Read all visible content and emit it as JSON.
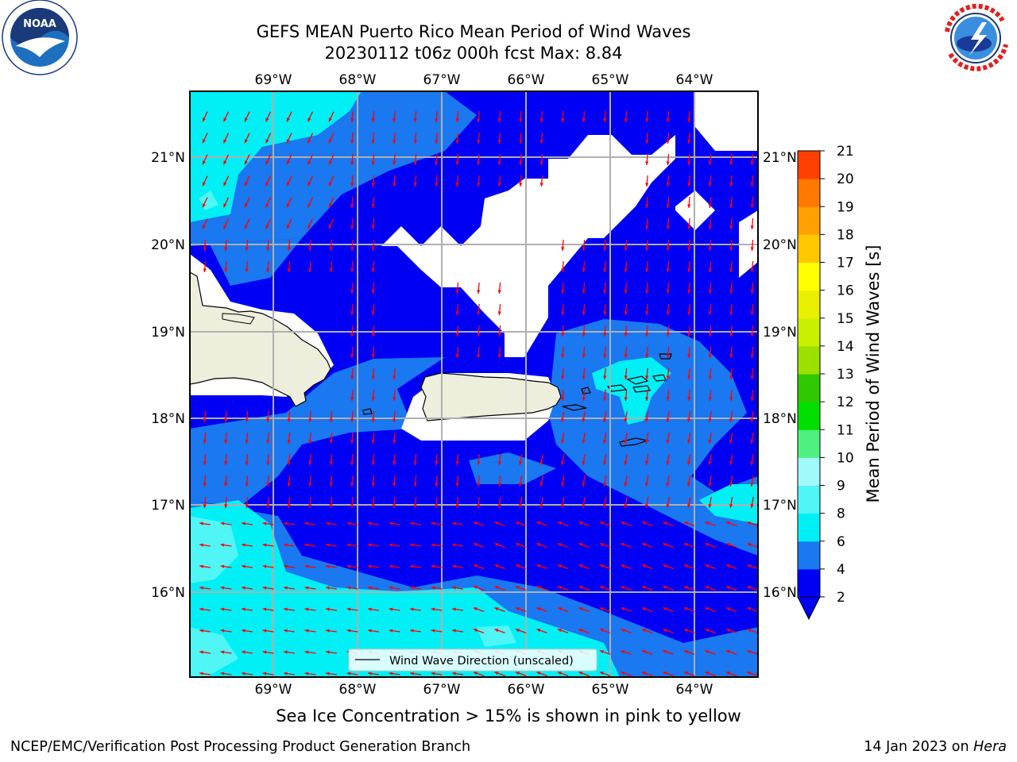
{
  "title_line1": "GEFS MEAN Puerto Rico Mean Period of Wind Waves",
  "title_line2": "20230112 t06z 000h fcst   Max: 8.84",
  "logos": {
    "left": "NOAA",
    "right": "NATIONAL WEATHER SERVICE"
  },
  "map": {
    "lon_labels": [
      "69°W",
      "68°W",
      "67°W",
      "66°W",
      "65°W",
      "64°W"
    ],
    "lat_labels": [
      "21°N",
      "20°N",
      "19°N",
      "18°N",
      "17°N",
      "16°N"
    ],
    "legend_label": "Wind Wave Direction (unscaled)",
    "colors": {
      "land": "#eeeedc",
      "class_2_4": "#0000f5",
      "class_4_6": "#1a78f0",
      "class_6_8": "#00f0f5",
      "class_8_9": "#50f5f5",
      "arrow": "#ff0000"
    }
  },
  "colorbar": {
    "label": "Mean Period of Wind Waves [s]",
    "ticks": [
      "2",
      "4",
      "6",
      "8",
      "9",
      "10",
      "11",
      "12",
      "13",
      "14",
      "15",
      "16",
      "17",
      "18",
      "19",
      "20",
      "21"
    ],
    "colors": [
      "#0000f5",
      "#1a78f0",
      "#00f0f5",
      "#50f5f5",
      "#a0fafa",
      "#50f080",
      "#00e000",
      "#30c800",
      "#9ce000",
      "#c8f000",
      "#e8f000",
      "#ffff00",
      "#ffc800",
      "#ffa000",
      "#ff7800",
      "#ff4000",
      "#ff0000"
    ],
    "extend_color": "#0000f5"
  },
  "caption": "Sea Ice Concentration > 15% is shown in pink to yellow",
  "footer_left": "NCEP/EMC/Verification Post Processing Product Generation Branch",
  "footer_right_prefix": "14 Jan 2023 on ",
  "footer_right_host": "Hera"
}
